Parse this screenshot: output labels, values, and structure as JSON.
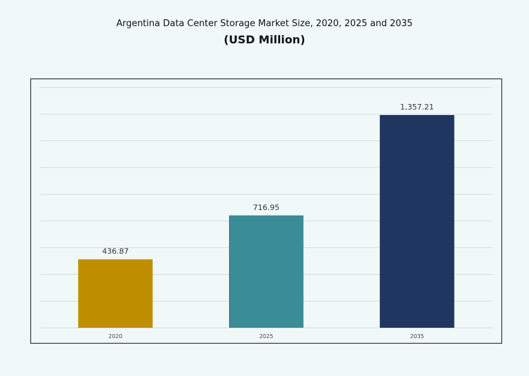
{
  "chart_data": {
    "type": "bar",
    "title": "Argentina Data Center Storage Market Size, 2020, 2025 and 2035",
    "subtitle": "(USD Million)",
    "xlabel": "",
    "ylabel": "",
    "categories": [
      "2020",
      "2025",
      "2035"
    ],
    "values": [
      436.87,
      716.95,
      1357.21
    ],
    "value_labels": [
      "436.87",
      "716.95",
      "1,357.21"
    ],
    "colors": [
      "#c08f00",
      "#3a8d96",
      "#1f3660"
    ],
    "ylim": [
      0,
      1533
    ],
    "grid": true,
    "grid_lines": 9,
    "y_tick_labels_shown": false,
    "legend": "none"
  }
}
